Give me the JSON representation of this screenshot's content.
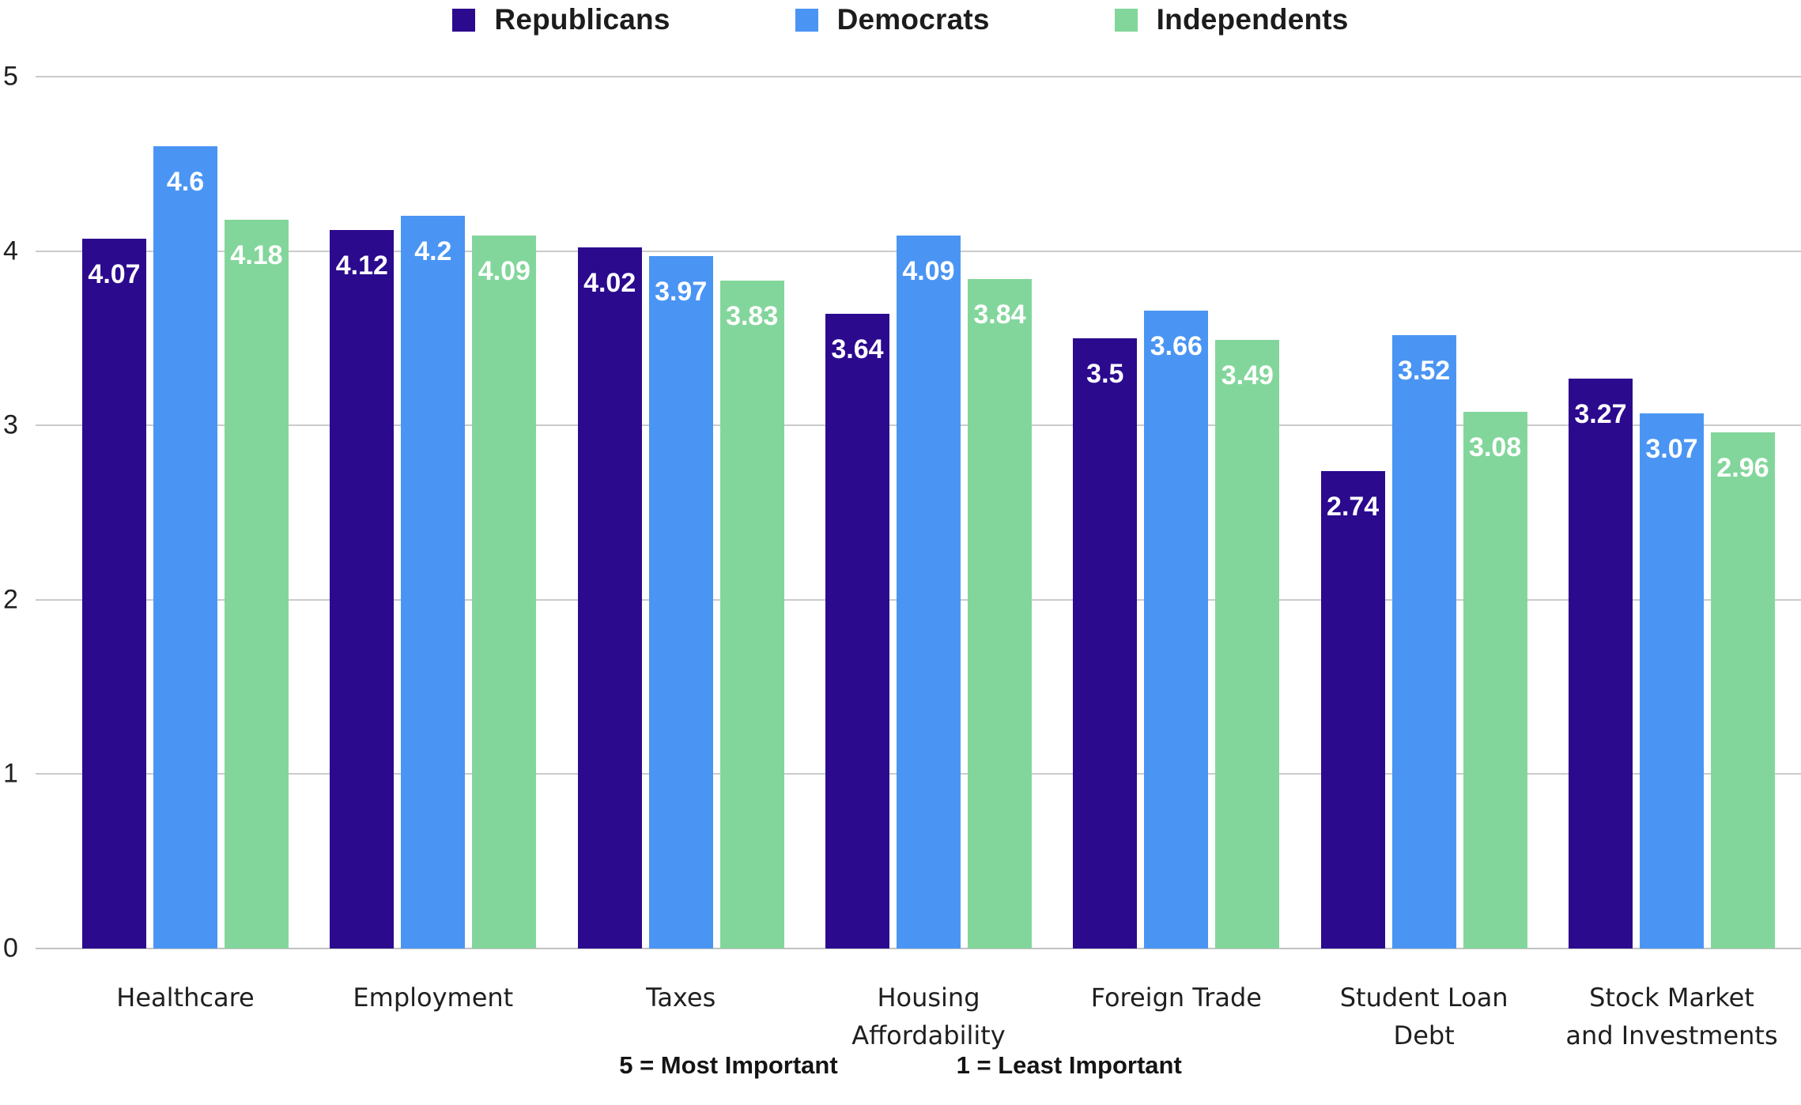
{
  "chart_data": {
    "type": "bar",
    "title": "",
    "categories": [
      "Healthcare",
      "Employment",
      "Taxes",
      "Housing Affordability",
      "Foreign Trade",
      "Student Loan Debt",
      "Stock Market and Investments"
    ],
    "category_lines": [
      [
        "Healthcare"
      ],
      [
        "Employment"
      ],
      [
        "Taxes"
      ],
      [
        "Housing",
        "Affordability"
      ],
      [
        "Foreign Trade"
      ],
      [
        "Student Loan",
        "Debt"
      ],
      [
        "Stock Market",
        "and Investments"
      ]
    ],
    "series": [
      {
        "name": "Republicans",
        "color": "#2b0a8e",
        "values": [
          4.07,
          4.12,
          4.02,
          3.64,
          3.5,
          2.74,
          3.27
        ]
      },
      {
        "name": "Democrats",
        "color": "#4a95f4",
        "values": [
          4.6,
          4.2,
          3.97,
          4.09,
          3.66,
          3.52,
          3.07
        ]
      },
      {
        "name": "Independents",
        "color": "#83d69b",
        "values": [
          4.18,
          4.09,
          3.83,
          3.84,
          3.49,
          3.08,
          2.96
        ]
      }
    ],
    "xlabel": "",
    "ylabel": "",
    "ylim": [
      0,
      5
    ],
    "yticks": [
      5,
      4,
      3,
      2,
      1,
      0
    ],
    "grid": true,
    "legend_position": "top",
    "value_labels": true,
    "value_label_color": "#ffffff",
    "gridline_color": "#cbcbcb"
  },
  "footer": {
    "scale_max_label": "5 = Most Important",
    "scale_min_label": "1 = Least Important"
  }
}
